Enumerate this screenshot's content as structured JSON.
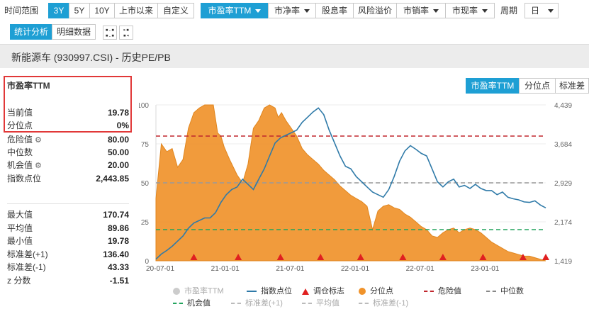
{
  "toolbar": {
    "period_label": "时间范围",
    "ranges": [
      "3Y",
      "5Y",
      "10Y",
      "上市以来",
      "自定义"
    ],
    "active_range": "3Y",
    "metrics": [
      "市盈率TTM",
      "市净率",
      "股息率",
      "风险溢价",
      "市销率",
      "市现率"
    ],
    "active_metric": "市盈率TTM",
    "cycle_label": "周期",
    "cycle_value": "日"
  },
  "view_tabs": [
    "统计分析",
    "明细数据"
  ],
  "active_view": "统计分析",
  "title": "新能源车 (930997.CSI) - 历史PE/PB",
  "stats": {
    "header": "市盈率TTM",
    "current_label": "当前值",
    "current_value": "19.78",
    "pct_label": "分位点",
    "pct_value": "0%",
    "danger_label": "危险值",
    "danger_value": "80.00",
    "median_label": "中位数",
    "median_value": "50.00",
    "chance_label": "机会值",
    "chance_value": "20.00",
    "index_label": "指数点位",
    "index_value": "2,443.85",
    "max_label": "最大值",
    "max_value": "170.74",
    "avg_label": "平均值",
    "avg_value": "89.86",
    "min_label": "最小值",
    "min_value": "19.78",
    "sdp_label": "标准差(+1)",
    "sdp_value": "136.40",
    "sdm_label": "标准差(-1)",
    "sdm_value": "43.33",
    "z_label": "z 分数",
    "z_value": "-1.51"
  },
  "chart_tabs": [
    "市盈率TTM",
    "分位点",
    "标准差"
  ],
  "active_chart_tab": "市盈率TTM",
  "chart_data": {
    "type": "area",
    "x_ticks": [
      "20-07-01",
      "21-01-01",
      "21-07-01",
      "22-01-01",
      "22-07-01",
      "23-01-01"
    ],
    "y_left_ticks": [
      "100",
      "75",
      "50",
      "25",
      "0"
    ],
    "y_right_ticks": [
      "4,439",
      "3,684",
      "2,929",
      "2,174",
      "1,419"
    ],
    "y_left_range": [
      0,
      100
    ],
    "y_right_range": [
      1419,
      4439
    ],
    "x_range": [
      0,
      36
    ],
    "reference_lines": {
      "danger": 80,
      "median": 50,
      "chance": 20
    },
    "percentile": {
      "x": [
        0,
        0.5,
        1.0,
        1.5,
        2.0,
        2.5,
        3.0,
        3.5,
        4.0,
        4.5,
        5.0,
        5.3,
        5.7,
        6.0,
        6.3,
        6.8,
        7.5,
        8.0,
        8.5,
        9.0,
        9.5,
        10.0,
        10.5,
        11.0,
        11.3,
        11.6,
        12.0,
        12.5,
        13.0,
        13.5,
        14.0,
        14.5,
        15.0,
        15.5,
        16.0,
        16.5,
        17.0,
        17.5,
        18.0,
        18.5,
        19.0,
        19.5,
        20.0,
        20.5,
        21.0,
        21.5,
        22.0,
        22.5,
        23.0,
        23.5,
        24.0,
        24.5,
        25.0,
        25.5,
        26.0,
        26.5,
        27.0,
        27.5,
        28.0,
        28.5,
        29.0,
        29.5,
        30.0,
        30.5,
        31.0,
        31.5,
        32.0,
        32.5,
        33.0,
        33.5,
        34.0,
        34.5,
        35.0,
        35.5,
        36.0
      ],
      "y": [
        40,
        75,
        70,
        72,
        60,
        65,
        85,
        95,
        98,
        100,
        100,
        100,
        82,
        80,
        73,
        65,
        55,
        50,
        62,
        85,
        90,
        98,
        100,
        98,
        92,
        95,
        90,
        85,
        80,
        72,
        68,
        65,
        62,
        58,
        55,
        52,
        48,
        45,
        42,
        40,
        38,
        35,
        20,
        32,
        35,
        36,
        34,
        33,
        30,
        28,
        25,
        22,
        20,
        16,
        15,
        18,
        20,
        21,
        18,
        20,
        21,
        20,
        18,
        15,
        12,
        10,
        8,
        6,
        5,
        4,
        3,
        3,
        2,
        1,
        0
      ]
    },
    "index": {
      "x": [
        0,
        0.5,
        1.0,
        1.5,
        2.0,
        2.5,
        3.0,
        3.5,
        4.0,
        4.5,
        5.0,
        5.5,
        6.0,
        6.5,
        7.0,
        7.5,
        8.0,
        8.5,
        9.0,
        9.5,
        10.0,
        10.5,
        11.0,
        11.5,
        12.0,
        12.5,
        13.0,
        13.5,
        14.0,
        14.5,
        15.0,
        15.5,
        16.0,
        16.5,
        17.0,
        17.5,
        18.0,
        18.5,
        19.0,
        19.5,
        20.0,
        20.5,
        21.0,
        21.5,
        22.0,
        22.5,
        23.0,
        23.5,
        24.0,
        24.5,
        25.0,
        25.5,
        26.0,
        26.5,
        27.0,
        27.5,
        28.0,
        28.5,
        29.0,
        29.5,
        30.0,
        30.5,
        31.0,
        31.5,
        32.0,
        32.5,
        33.0,
        33.5,
        34.0,
        34.5,
        35.0,
        35.5,
        36.0
      ],
      "y": [
        1450,
        1550,
        1620,
        1700,
        1800,
        1900,
        2050,
        2150,
        2200,
        2250,
        2250,
        2350,
        2550,
        2700,
        2800,
        2850,
        3000,
        2900,
        2800,
        3000,
        3200,
        3450,
        3700,
        3800,
        3850,
        3900,
        3950,
        4100,
        4200,
        4300,
        4380,
        4250,
        3950,
        3700,
        3450,
        3250,
        3200,
        3050,
        2950,
        2850,
        2750,
        2700,
        2650,
        2800,
        3050,
        3350,
        3550,
        3650,
        3580,
        3500,
        3450,
        3200,
        2950,
        2850,
        2950,
        3000,
        2850,
        2880,
        2820,
        2900,
        2820,
        2780,
        2780,
        2700,
        2750,
        2650,
        2620,
        2600,
        2560,
        2550,
        2580,
        2500,
        2444
      ]
    },
    "rebalance_markers_x": [
      3.5,
      7.6,
      11.5,
      15.2,
      18.9,
      22.8,
      26.5,
      30.2,
      33.9,
      36.0
    ],
    "legend": [
      {
        "label": "市盈率TTM",
        "color": "#cccccc",
        "dim": true
      },
      {
        "label": "指数点位",
        "color": "#2f7aa8",
        "dim": false
      },
      {
        "label": "调仓标志",
        "color": "#e02020",
        "dim": false
      },
      {
        "label": "分位点",
        "color": "#f0932b",
        "dim": false
      },
      {
        "label": "危险值",
        "color": "#c0262d",
        "dim": false
      },
      {
        "label": "中位数",
        "color": "#888888",
        "dim": false
      },
      {
        "label": "机会值",
        "color": "#22a45d",
        "dim": false
      },
      {
        "label": "标准差(+1)",
        "color": "#bbbbbb",
        "dim": true
      },
      {
        "label": "平均值",
        "color": "#bbbbbb",
        "dim": true
      },
      {
        "label": "标准差(-1)",
        "color": "#bbbbbb",
        "dim": true
      }
    ]
  }
}
